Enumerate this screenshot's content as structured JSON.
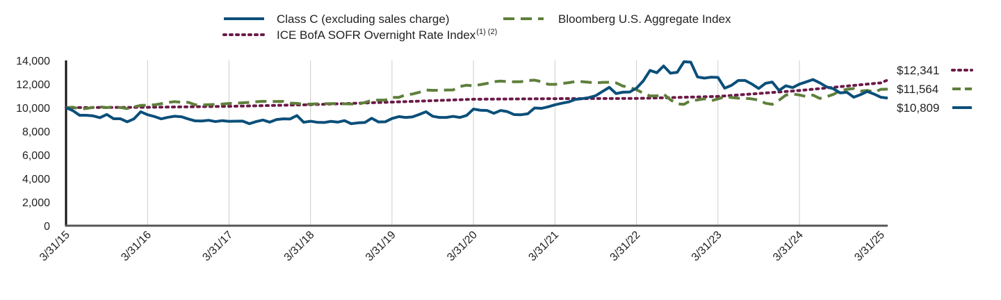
{
  "chart_data": {
    "type": "line",
    "title": "",
    "xlabel": "",
    "ylabel": "",
    "ylim": [
      0,
      14000
    ],
    "yticks": [
      "14,000",
      "12,000",
      "10,000",
      "8,000",
      "6,000",
      "4,000",
      "2,000",
      "0"
    ],
    "ytick_values": [
      14000,
      12000,
      10000,
      8000,
      6000,
      4000,
      2000,
      0
    ],
    "xticks": [
      "3/31/15",
      "3/31/16",
      "3/31/17",
      "3/31/18",
      "3/31/19",
      "3/31/20",
      "3/31/21",
      "3/31/22",
      "3/31/23",
      "3/31/24",
      "3/31/25"
    ],
    "grid": "vertical",
    "legend_position": "top",
    "series": [
      {
        "key": "class_c",
        "name": "Class C (excluding sales charge)",
        "color": "#0b4f7a",
        "style": "solid",
        "end_label": "$10,809",
        "values": [
          10000,
          9750,
          9350,
          9350,
          9300,
          9150,
          9420,
          9060,
          9060,
          8800,
          9050,
          9650,
          9400,
          9250,
          9050,
          9180,
          9270,
          9230,
          9040,
          8880,
          8870,
          8930,
          8820,
          8900,
          8840,
          8850,
          8860,
          8640,
          8820,
          8950,
          8770,
          8990,
          9050,
          9040,
          9330,
          8760,
          8850,
          8760,
          8740,
          8840,
          8770,
          8900,
          8640,
          8710,
          8740,
          9100,
          8790,
          8800,
          9080,
          9240,
          9170,
          9210,
          9420,
          9650,
          9270,
          9170,
          9170,
          9260,
          9170,
          9340,
          9880,
          9780,
          9760,
          9520,
          9760,
          9660,
          9410,
          9400,
          9480,
          9970,
          9940,
          10070,
          10240,
          10370,
          10480,
          10700,
          10760,
          10850,
          11010,
          11370,
          11720,
          11190,
          11310,
          11320,
          11650,
          12260,
          13150,
          12960,
          13530,
          12920,
          12990,
          13890,
          13850,
          12600,
          12500,
          12580,
          12560,
          11650,
          11890,
          12300,
          12300,
          12000,
          11620,
          12060,
          12170,
          11460,
          11850,
          11700,
          11990,
          12180,
          12380,
          12100,
          11760,
          11600,
          11250,
          11300,
          10880,
          11100,
          11370,
          11150,
          10880,
          10809
        ]
      },
      {
        "key": "bloomberg",
        "name": "Bloomberg U.S. Aggregate Index",
        "color": "#5e7f3a",
        "style": "dashed",
        "end_label": "$11,564",
        "values": [
          10000,
          10040,
          9880,
          9930,
          10020,
          10070,
          10000,
          10070,
          10010,
          9920,
          10060,
          10190,
          10200,
          10240,
          10330,
          10440,
          10510,
          10450,
          10450,
          10250,
          10230,
          10250,
          10280,
          10300,
          10350,
          10370,
          10410,
          10440,
          10500,
          10540,
          10520,
          10520,
          10530,
          10380,
          10360,
          10280,
          10300,
          10320,
          10330,
          10340,
          10350,
          10320,
          10310,
          10290,
          10440,
          10610,
          10640,
          10640,
          10870,
          10870,
          11090,
          11150,
          11300,
          11500,
          11460,
          11470,
          11490,
          11500,
          11790,
          11900,
          11840,
          11950,
          12050,
          12200,
          12250,
          12200,
          12190,
          12200,
          12290,
          12330,
          12200,
          11980,
          11970,
          12040,
          12110,
          12210,
          12200,
          12150,
          12100,
          12140,
          12150,
          12100,
          11830,
          11710,
          11520,
          11230,
          10990,
          11000,
          11150,
          10660,
          10320,
          10280,
          10610,
          10650,
          10750,
          10580,
          10740,
          10920,
          10860,
          10800,
          10790,
          10740,
          10640,
          10370,
          10280,
          10630,
          11060,
          11160,
          11070,
          10940,
          11060,
          10780,
          10930,
          11120,
          11440,
          11550,
          11620,
          11400,
          11460,
          11310,
          11550,
          11564
        ]
      },
      {
        "key": "sofr",
        "name": "ICE BofA SOFR Overnight Rate Index",
        "name_sup": "(1) (2)",
        "color": "#6b1a47",
        "style": "dotted",
        "end_label": "$12,341",
        "anchors": [
          [
            0,
            10000
          ],
          [
            12,
            10030
          ],
          [
            24,
            10110
          ],
          [
            36,
            10250
          ],
          [
            48,
            10470
          ],
          [
            60,
            10710
          ],
          [
            72,
            10760
          ],
          [
            84,
            10780
          ],
          [
            96,
            10950
          ],
          [
            108,
            11450
          ],
          [
            120,
            12100
          ],
          [
            121,
            12341
          ]
        ]
      }
    ]
  }
}
